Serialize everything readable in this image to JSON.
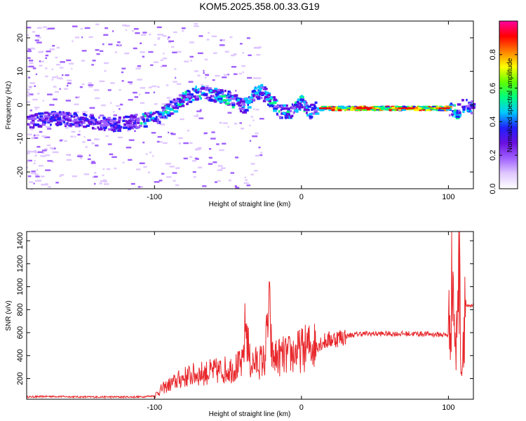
{
  "figure_title": "KOM5.2025.358.00.33.G19",
  "chart_data": [
    {
      "type": "heatmap",
      "name": "spectrogram",
      "xlabel": "Height of straight line (km)",
      "ylabel": "Frequency (Hz)",
      "xlim": [
        -187,
        117
      ],
      "ylim": [
        -25,
        25
      ],
      "xticks": [
        -100,
        0,
        100
      ],
      "yticks": [
        -20,
        -10,
        0,
        10,
        20
      ],
      "colorbar": {
        "label": "Normalized spectral amplitude",
        "range": [
          0.0,
          1.0
        ],
        "ticks": [
          0.0,
          0.2,
          0.4,
          0.6,
          0.8
        ],
        "colors": [
          "#ffffff",
          "#e0c8ff",
          "#a060ff",
          "#6a10e0",
          "#2020ff",
          "#00c8ff",
          "#00ff80",
          "#60ff00",
          "#ffff00",
          "#ff8000",
          "#ff0000",
          "#ff00a0"
        ]
      },
      "ridge": {
        "x": [
          -187,
          -170,
          -150,
          -130,
          -115,
          -100,
          -90,
          -80,
          -70,
          -60,
          -50,
          -40,
          -33,
          -28,
          -22,
          -15,
          -8,
          0,
          5,
          10,
          20,
          40,
          60,
          80,
          100,
          105,
          110,
          117
        ],
        "y": [
          -5,
          -4,
          -4.5,
          -6,
          -5,
          -4,
          -1,
          2,
          4,
          3,
          2,
          -0.5,
          3,
          4,
          1,
          -2,
          -2,
          1,
          -2,
          -1,
          -1,
          -1,
          -1,
          -1,
          -1,
          -2,
          0,
          -1
        ]
      }
    },
    {
      "type": "line",
      "name": "snr",
      "xlabel": "Height of straight line (km)",
      "ylabel": "SNR (v/v)",
      "xlim": [
        -187,
        117
      ],
      "ylim": [
        20,
        1480
      ],
      "xticks": [
        -100,
        0,
        100
      ],
      "yticks": [
        200,
        400,
        600,
        800,
        1000,
        1200,
        1400
      ],
      "color": "#e8282c",
      "series": [
        {
          "name": "SNR",
          "x": [
            -187,
            -170,
            -150,
            -130,
            -110,
            -100,
            -95,
            -85,
            -80,
            -75,
            -70,
            -65,
            -60,
            -55,
            -50,
            -45,
            -40,
            -38,
            -35,
            -30,
            -25,
            -22,
            -20,
            -15,
            -10,
            -5,
            0,
            5,
            10,
            15,
            20,
            30,
            40,
            60,
            80,
            100,
            103,
            105,
            107,
            109,
            111,
            113,
            117
          ],
          "y": [
            40,
            45,
            40,
            40,
            40,
            50,
            110,
            180,
            210,
            230,
            240,
            250,
            260,
            270,
            280,
            300,
            320,
            700,
            330,
            340,
            360,
            820,
            380,
            390,
            400,
            420,
            450,
            480,
            500,
            520,
            540,
            570,
            590,
            590,
            590,
            580,
            1150,
            300,
            1480,
            200,
            870,
            820,
            830
          ]
        }
      ]
    }
  ]
}
